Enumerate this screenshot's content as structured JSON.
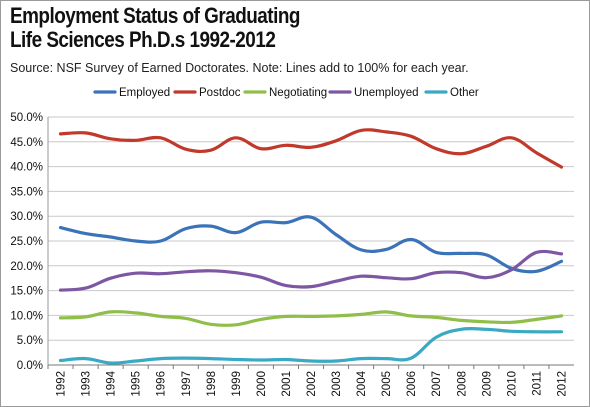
{
  "title_lines": [
    "Employment Status of Graduating",
    "Life Sciences Ph.D.s 1992-2012"
  ],
  "subtitle": "Source: NSF Survey of Earned Doctorates. Note: Lines add to 100% for each year.",
  "chart_data": {
    "type": "line",
    "title": "Employment Status of Graduating Life Sciences Ph.D.s 1992-2012",
    "xlabel": "",
    "ylabel": "",
    "ylim": [
      0,
      50
    ],
    "ytick_labels": [
      "0.0%",
      "5.0%",
      "10.0%",
      "15.0%",
      "20.0%",
      "25.0%",
      "30.0%",
      "35.0%",
      "40.0%",
      "45.0%",
      "50.0%"
    ],
    "categories": [
      "1992",
      "1993",
      "1994",
      "1995",
      "1996",
      "1997",
      "1998",
      "1999",
      "2000",
      "2001",
      "2002",
      "2003",
      "2004",
      "2005",
      "2006",
      "2007",
      "2008",
      "2009",
      "2010",
      "2011",
      "2012"
    ],
    "grid": "horizontal",
    "legend_position": "top",
    "series": [
      {
        "name": "Employed",
        "color": "#3b73b9",
        "values": [
          27.7,
          26.5,
          25.8,
          25.0,
          25.0,
          27.5,
          28.0,
          26.7,
          28.8,
          28.7,
          29.8,
          26.3,
          23.2,
          23.3,
          25.3,
          22.7,
          22.5,
          22.2,
          19.5,
          18.9,
          20.9
        ]
      },
      {
        "name": "Postdoc",
        "color": "#c0392b",
        "values": [
          46.6,
          46.8,
          45.6,
          45.3,
          45.8,
          43.5,
          43.3,
          45.8,
          43.6,
          44.3,
          43.9,
          45.2,
          47.3,
          47.0,
          46.1,
          43.6,
          42.6,
          44.1,
          45.8,
          42.8,
          39.9
        ]
      },
      {
        "name": "Negotiating",
        "color": "#8fbf4a",
        "values": [
          9.5,
          9.7,
          10.7,
          10.5,
          9.8,
          9.4,
          8.2,
          8.1,
          9.2,
          9.8,
          9.8,
          9.9,
          10.2,
          10.7,
          9.9,
          9.6,
          9.0,
          8.7,
          8.6,
          9.2,
          9.9
        ]
      },
      {
        "name": "Unemployed",
        "color": "#7e57a3",
        "values": [
          15.1,
          15.5,
          17.5,
          18.5,
          18.4,
          18.8,
          19.0,
          18.6,
          17.7,
          16.0,
          15.8,
          16.9,
          17.9,
          17.6,
          17.4,
          18.6,
          18.6,
          17.6,
          19.2,
          22.7,
          22.4
        ]
      },
      {
        "name": "Other",
        "color": "#3aa9c4",
        "values": [
          0.9,
          1.3,
          0.4,
          0.8,
          1.3,
          1.4,
          1.3,
          1.1,
          1.0,
          1.1,
          0.8,
          0.8,
          1.3,
          1.3,
          1.4,
          5.6,
          7.2,
          7.2,
          6.8,
          6.7,
          6.7
        ]
      }
    ]
  }
}
